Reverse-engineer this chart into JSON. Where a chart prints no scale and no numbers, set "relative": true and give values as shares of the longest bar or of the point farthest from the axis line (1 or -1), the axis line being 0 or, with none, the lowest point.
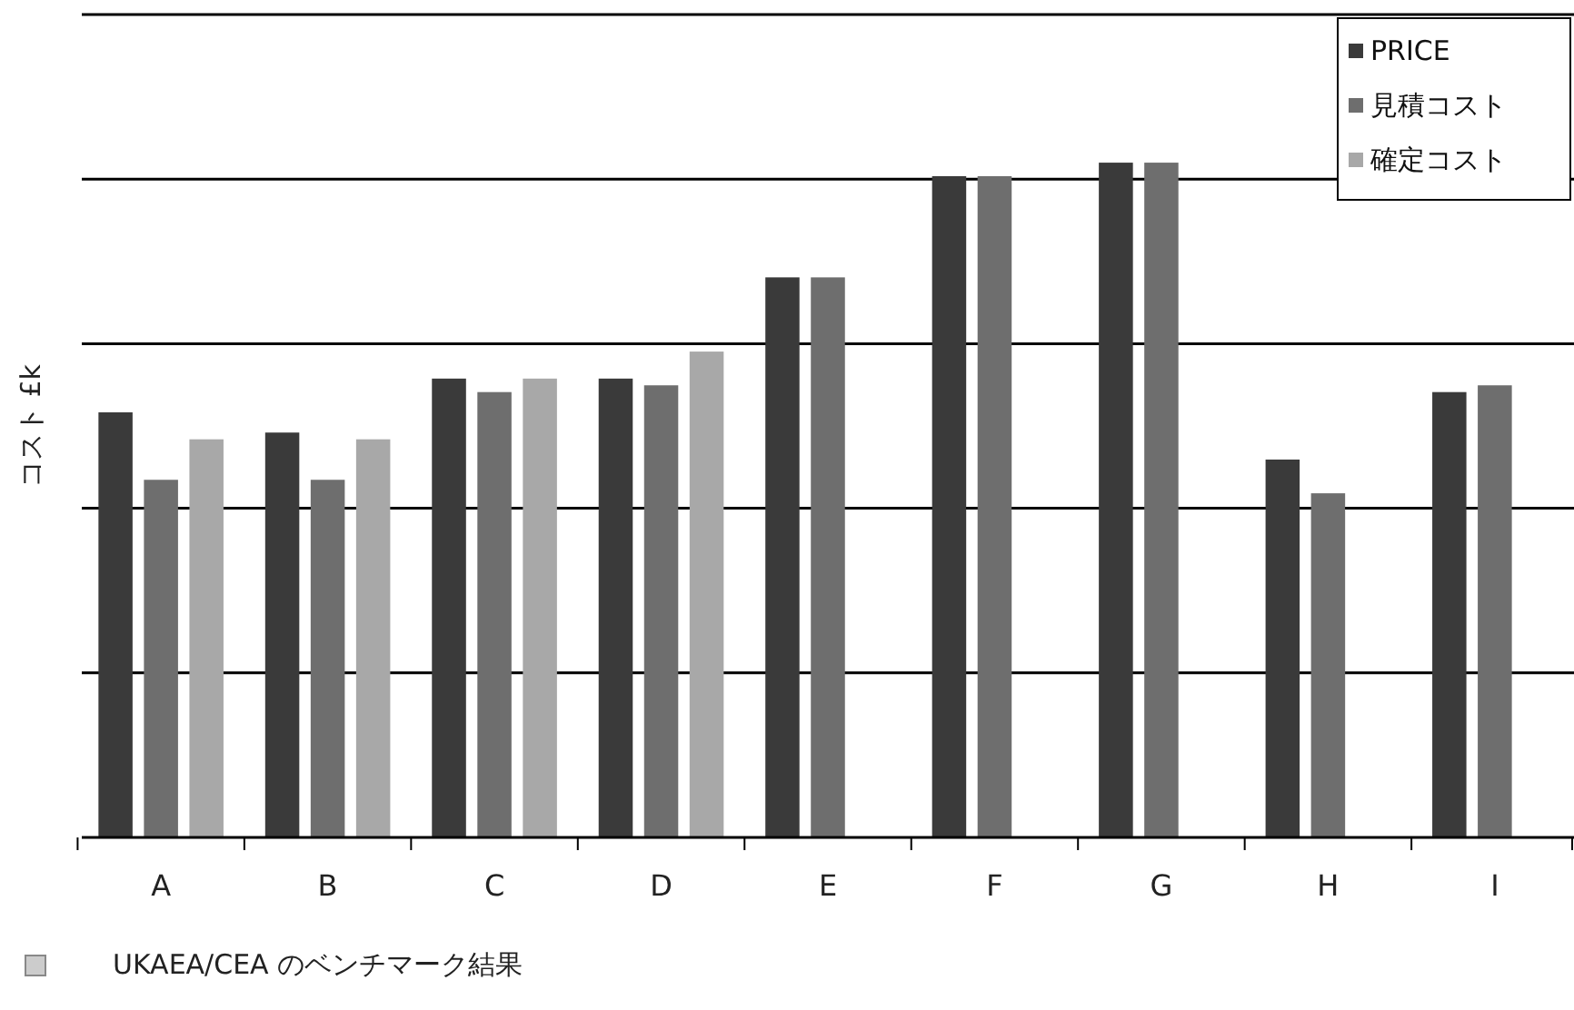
{
  "chart_data": {
    "type": "bar",
    "ylabel": "コスト £k",
    "categories": [
      "A",
      "B",
      "C",
      "D",
      "E",
      "F",
      "G",
      "H",
      "I"
    ],
    "series": [
      {
        "name": "PRICE",
        "color": "#3a3a3a",
        "values": [
          0.63,
          0.6,
          0.68,
          0.68,
          0.83,
          0.98,
          1,
          0.56,
          0.66
        ]
      },
      {
        "name": "見積コスト",
        "color": "#6e6e6e",
        "values": [
          0.53,
          0.53,
          0.66,
          0.67,
          0.83,
          0.98,
          1,
          0.51,
          0.67
        ]
      },
      {
        "name": "確定コスト",
        "color": "#a8a8a8",
        "values": [
          0.59,
          0.59,
          0.68,
          0.72,
          null,
          null,
          null,
          null,
          null
        ]
      }
    ],
    "relative": true,
    "grid": true,
    "legend": "top right",
    "annotations": [
      "UKAEA/CEA のベンチマーク結果"
    ]
  }
}
